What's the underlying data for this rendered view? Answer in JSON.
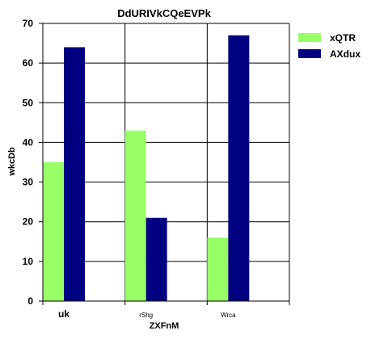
{
  "chart_data": {
    "type": "bar",
    "title": "DdURIVkCQeEVPk",
    "xlabel": "ZXFnM",
    "ylabel": "wkcDb",
    "categories": [
      "uk",
      "rShg",
      "Wrca"
    ],
    "series": [
      {
        "name": "xQTR",
        "color": "#99ff66",
        "values": [
          35,
          43,
          16
        ]
      },
      {
        "name": "AXdux",
        "color": "#000080",
        "values": [
          64,
          21,
          67
        ]
      }
    ],
    "ylim": [
      0,
      70
    ],
    "yticks": [
      0,
      10,
      20,
      30,
      40,
      50,
      60,
      70
    ],
    "grid": true,
    "legend_position": "top-right"
  }
}
